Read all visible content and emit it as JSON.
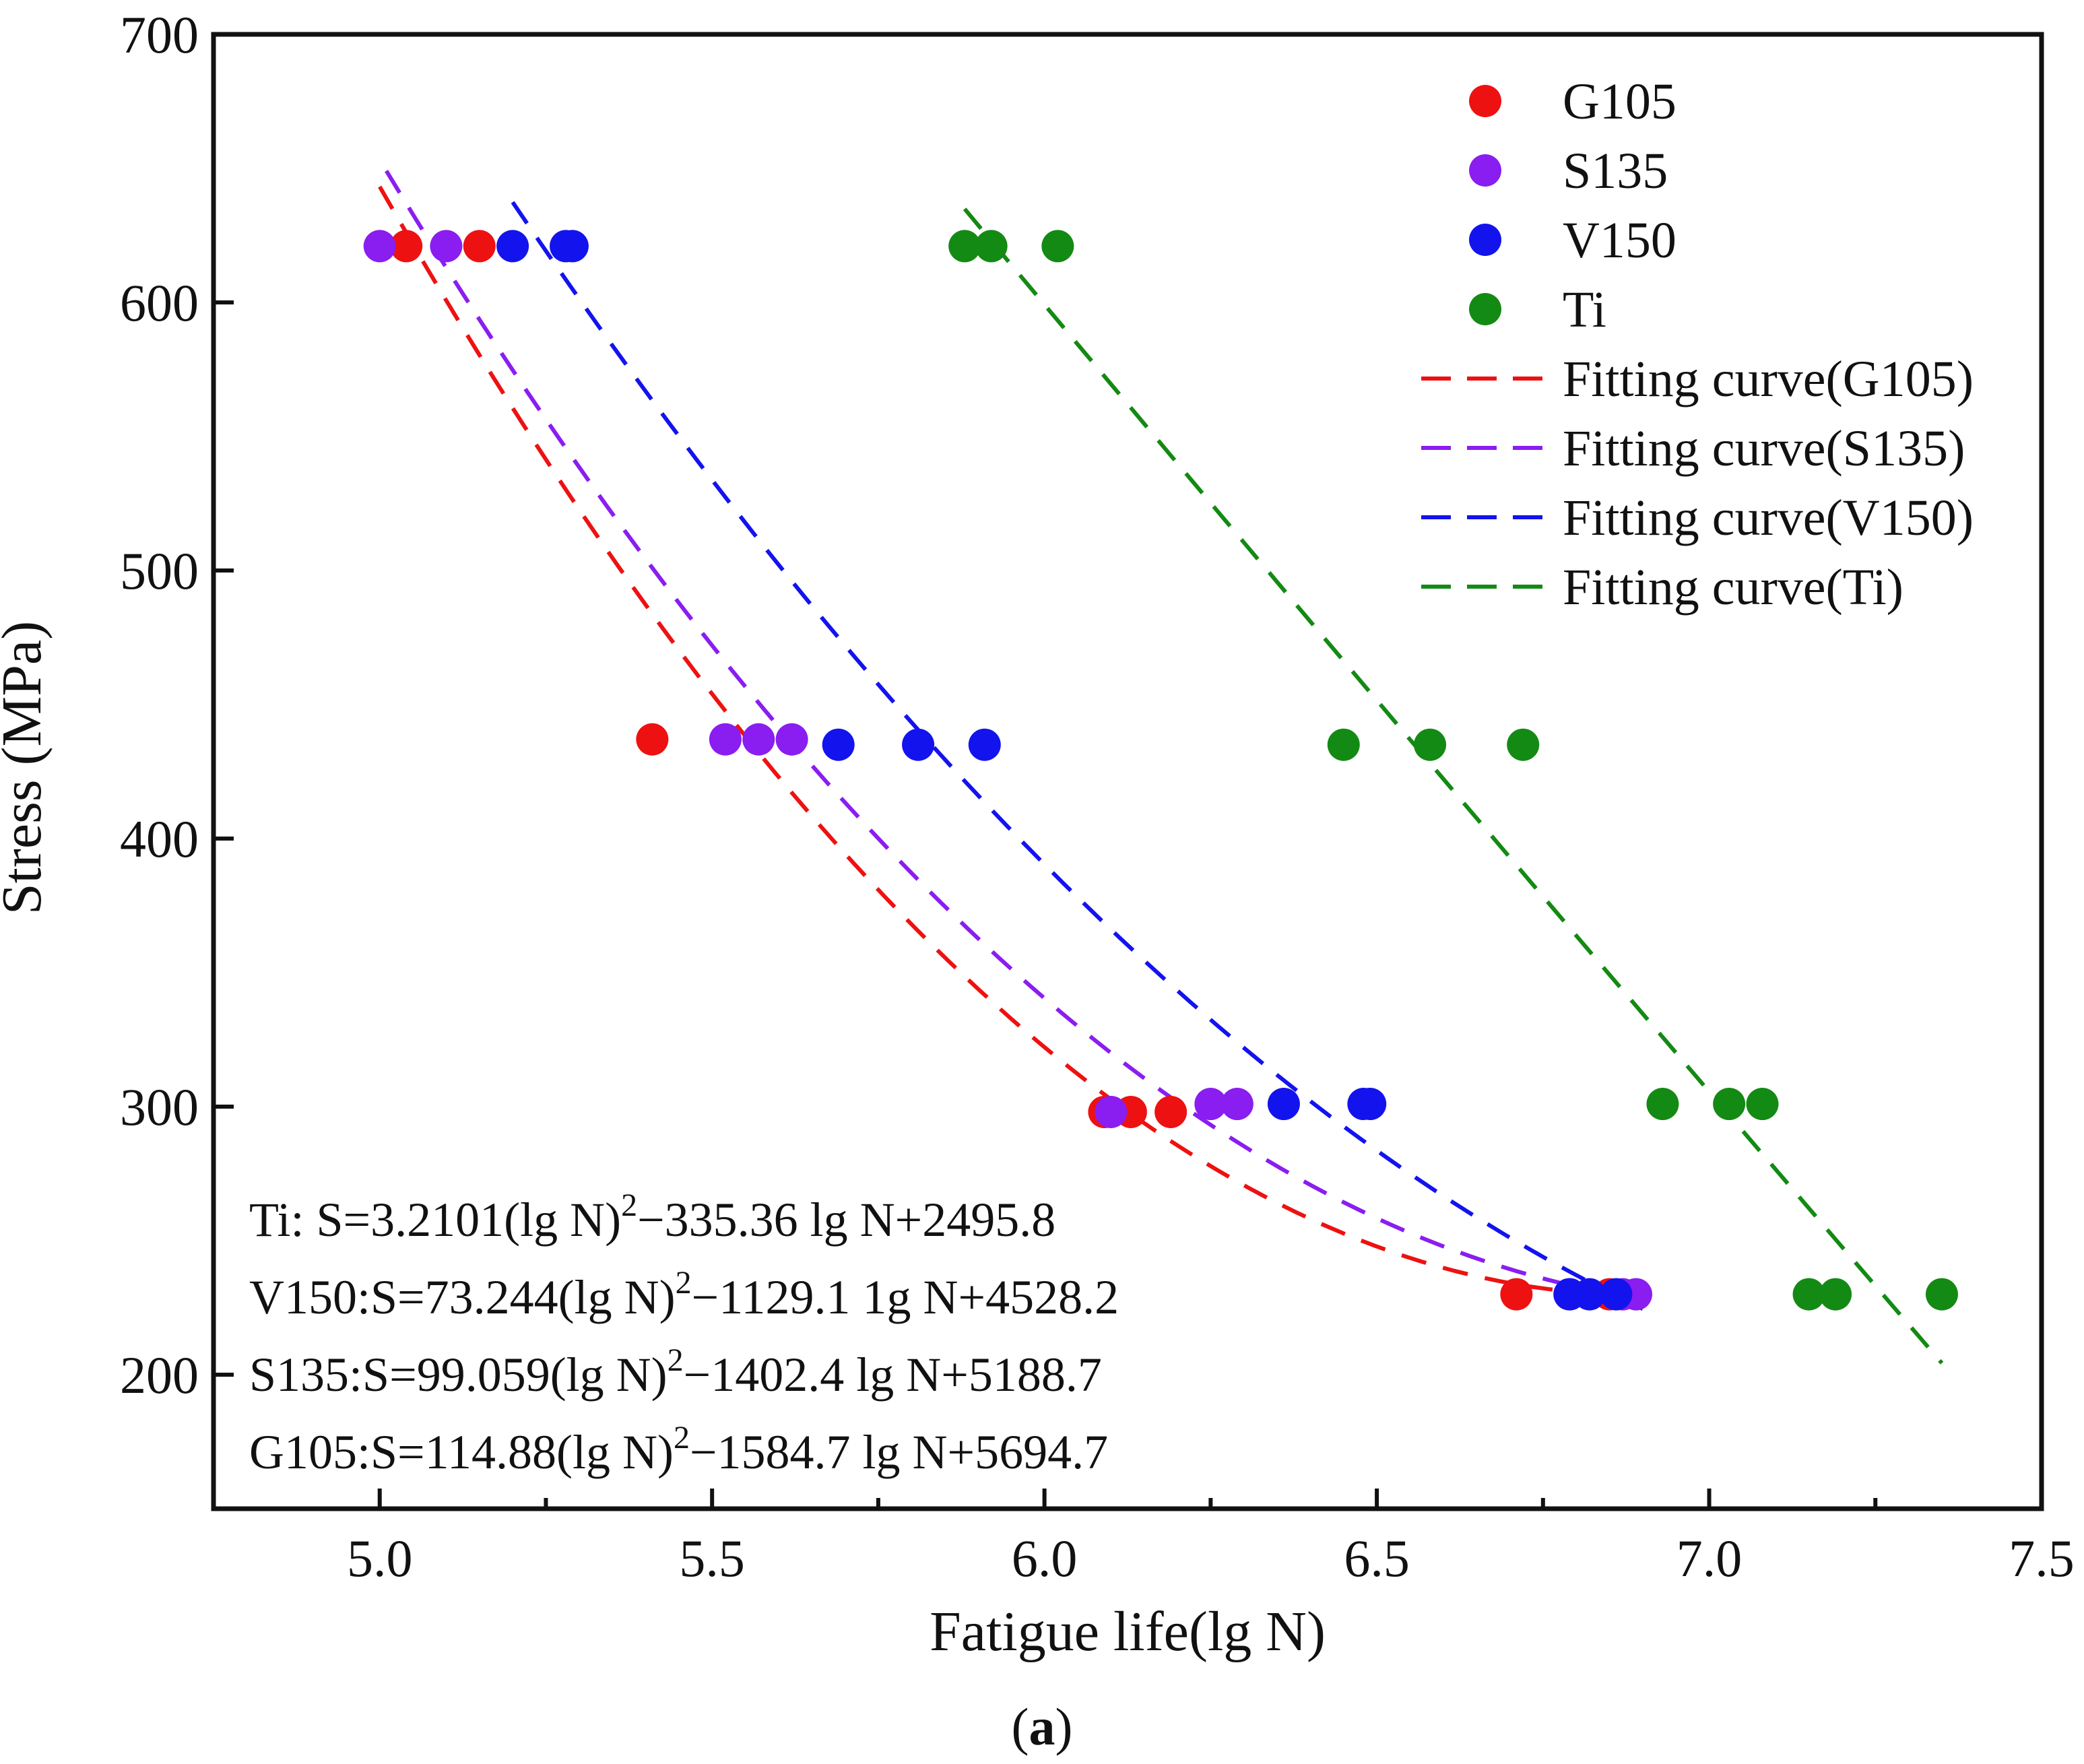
{
  "chart_data": {
    "type": "scatter",
    "title": "",
    "xlabel": "Fatigue life(lg N)",
    "ylabel": "Stress (MPa)",
    "xlim": [
      4.75,
      7.5
    ],
    "ylim": [
      150,
      700
    ],
    "x_ticks": [
      5.0,
      5.5,
      6.0,
      6.5,
      7.0,
      7.5
    ],
    "x_tick_labels": [
      "5.0",
      "5.5",
      "6.0",
      "6.5",
      "7.0",
      "7.5"
    ],
    "y_ticks": [
      200,
      300,
      400,
      500,
      600,
      700
    ],
    "y_tick_labels": [
      "200",
      "300",
      "400",
      "500",
      "600",
      "700"
    ],
    "grid": false,
    "legend_position": "top-right",
    "series": [
      {
        "name": "G105",
        "color": "#ee1111",
        "points": [
          [
            5.04,
            621
          ],
          [
            5.15,
            621
          ],
          [
            5.41,
            437
          ],
          [
            6.09,
            298
          ],
          [
            6.13,
            298
          ],
          [
            6.19,
            298
          ],
          [
            6.71,
            230
          ],
          [
            6.85,
            230
          ]
        ]
      },
      {
        "name": "S135",
        "color": "#8a1df0",
        "points": [
          [
            5.0,
            621
          ],
          [
            5.1,
            621
          ],
          [
            5.52,
            437
          ],
          [
            5.57,
            437
          ],
          [
            5.62,
            437
          ],
          [
            6.1,
            298
          ],
          [
            6.25,
            301
          ],
          [
            6.29,
            301
          ],
          [
            6.79,
            230
          ],
          [
            6.87,
            230
          ],
          [
            6.89,
            230
          ]
        ]
      },
      {
        "name": "V150",
        "color": "#1313ee",
        "points": [
          [
            5.2,
            621
          ],
          [
            5.28,
            621
          ],
          [
            5.29,
            621
          ],
          [
            5.69,
            435
          ],
          [
            5.81,
            435
          ],
          [
            5.91,
            435
          ],
          [
            6.36,
            301
          ],
          [
            6.48,
            301
          ],
          [
            6.49,
            301
          ],
          [
            6.79,
            230
          ],
          [
            6.82,
            230
          ],
          [
            6.86,
            230
          ]
        ]
      },
      {
        "name": "Ti",
        "color": "#138a13",
        "points": [
          [
            5.88,
            621
          ],
          [
            5.92,
            621
          ],
          [
            6.02,
            621
          ],
          [
            6.45,
            435
          ],
          [
            6.58,
            435
          ],
          [
            6.72,
            435
          ],
          [
            6.93,
            301
          ],
          [
            7.03,
            301
          ],
          [
            7.08,
            301
          ],
          [
            7.15,
            230
          ],
          [
            7.19,
            230
          ],
          [
            7.35,
            230
          ]
        ]
      }
    ],
    "fits": [
      {
        "name": "Fitting curve(G105)",
        "color": "#ee1111",
        "a": 114.88,
        "b": -1584.7,
        "c": 5694.7,
        "x_range": [
          5.0,
          6.9
        ]
      },
      {
        "name": "Fitting curve(S135)",
        "color": "#8a1df0",
        "a": 99.059,
        "b": -1402.4,
        "c": 5188.7,
        "x_range": [
          5.01,
          6.9
        ]
      },
      {
        "name": "Fitting curve(V150)",
        "color": "#1313ee",
        "a": 73.244,
        "b": -1129.1,
        "c": 4528.2,
        "x_range": [
          5.2,
          6.9
        ]
      },
      {
        "name": "Fitting curve(Ti)",
        "color": "#138a13",
        "a": 3.2101,
        "b": -335.36,
        "c": 2495.8,
        "x_range": [
          5.88,
          7.35
        ]
      }
    ],
    "equations": [
      {
        "prefix": "Ti: S=3.2101(lg N)",
        "sup": "2",
        "suffix": "−335.36 lg N+2495.8"
      },
      {
        "prefix": "V150:S=73.244(lg N)",
        "sup": "2",
        "suffix": "−1129.1 1g N+4528.2"
      },
      {
        "prefix": "S135:S=99.059(lg N)",
        "sup": "2",
        "suffix": "−1402.4 lg N+5188.7"
      },
      {
        "prefix": "G105:S=114.88(lg N)",
        "sup": "2",
        "suffix": "−1584.7 lg N+5694.7"
      }
    ]
  },
  "caption": {
    "open": "(",
    "letter": "a",
    "close": ")"
  }
}
